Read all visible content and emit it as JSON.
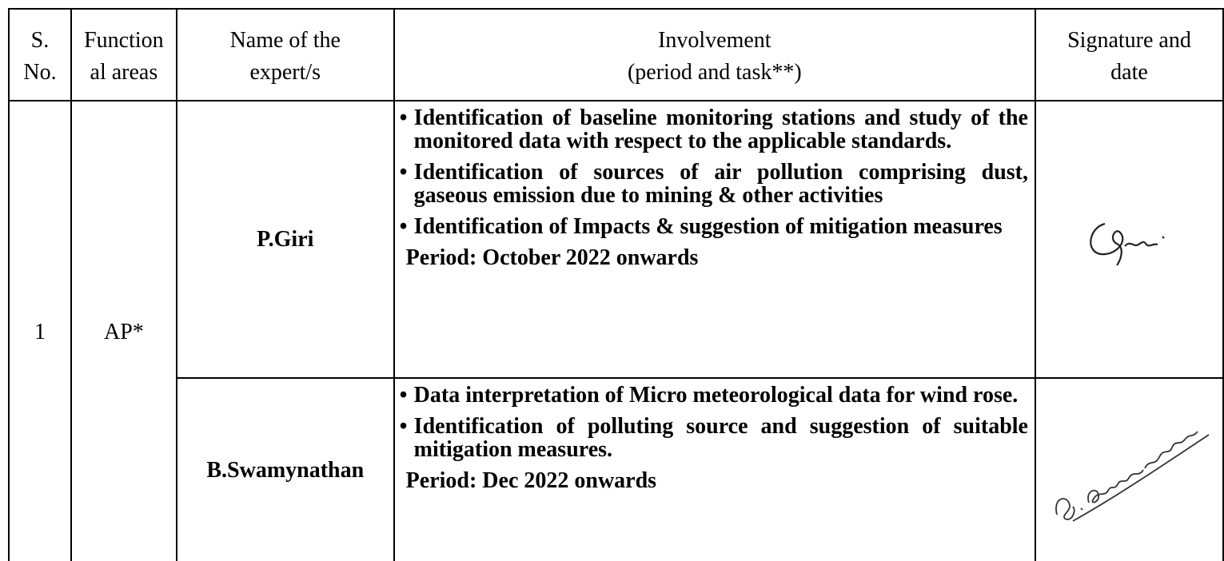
{
  "table": {
    "header": [
      [
        "S.",
        "No."
      ],
      [
        "Function",
        "al areas"
      ],
      [
        "Name of the",
        "expert/s"
      ],
      [
        "Involvement",
        "(period and task**)"
      ],
      [
        "Signature and",
        "date"
      ]
    ],
    "rows": [
      {
        "sno": "1",
        "area": "AP*",
        "experts": [
          {
            "name": "P.Giri",
            "tasks": [
              "Identification of baseline monitoring stations and study of the monitored data with respect to the applicable standards.",
              "Identification of sources of air pollution comprising dust, gaseous emission due to mining & other activities",
              "Identification of Impacts & suggestion of mitigation measures"
            ],
            "period": "Period: October 2022 onwards"
          },
          {
            "name": "B.Swamynathan",
            "tasks": [
              "Data interpretation of Micro meteorological data for wind rose.",
              "Identification of polluting source and suggestion of suitable mitigation measures."
            ],
            "period": "Period: Dec 2022 onwards"
          }
        ]
      }
    ]
  }
}
